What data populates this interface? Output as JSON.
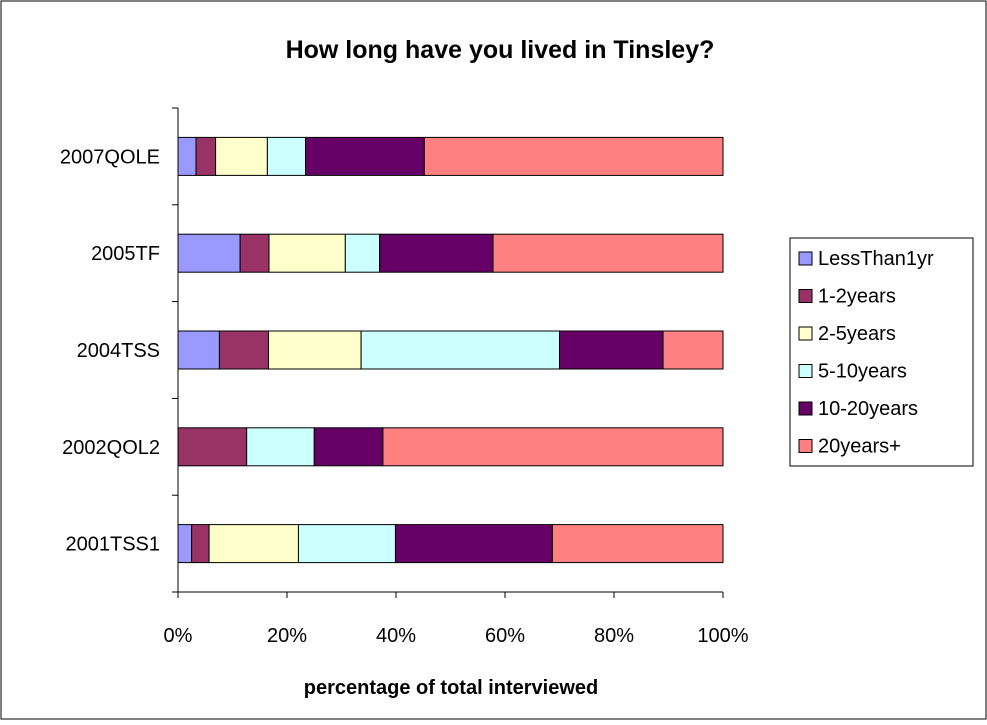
{
  "chart_data": {
    "type": "bar",
    "orientation": "horizontal",
    "stacking": "percent",
    "title": "How long have you lived in Tinsley?",
    "xlabel": "percentage of total interviewed",
    "ylabel": "",
    "xlim": [
      0,
      100
    ],
    "x_ticks": [
      "0%",
      "20%",
      "40%",
      "60%",
      "80%",
      "100%"
    ],
    "categories": [
      "2007QOLE",
      "2005TF",
      "2004TSS",
      "2002QOL2",
      "2001TSS1"
    ],
    "legend_position": "right",
    "grid": false,
    "series": [
      {
        "name": "LessThan1yr",
        "color": "#9999ff",
        "values": [
          3.3,
          11.4,
          7.6,
          0,
          2.5
        ]
      },
      {
        "name": "1-2years",
        "color": "#993366",
        "values": [
          3.6,
          5.3,
          9.0,
          12.6,
          3.2
        ]
      },
      {
        "name": "2-5years",
        "color": "#ffffcc",
        "values": [
          9.5,
          14.0,
          17.0,
          0,
          16.4
        ]
      },
      {
        "name": "5-10years",
        "color": "#ccffff",
        "values": [
          7.0,
          6.3,
          36.4,
          12.4,
          17.8
        ]
      },
      {
        "name": "10-20years",
        "color": "#660066",
        "values": [
          21.8,
          20.8,
          19.0,
          12.6,
          28.8
        ]
      },
      {
        "name": "20years+",
        "color": "#ff8080",
        "values": [
          54.8,
          42.2,
          11.0,
          62.4,
          31.3
        ]
      }
    ]
  }
}
